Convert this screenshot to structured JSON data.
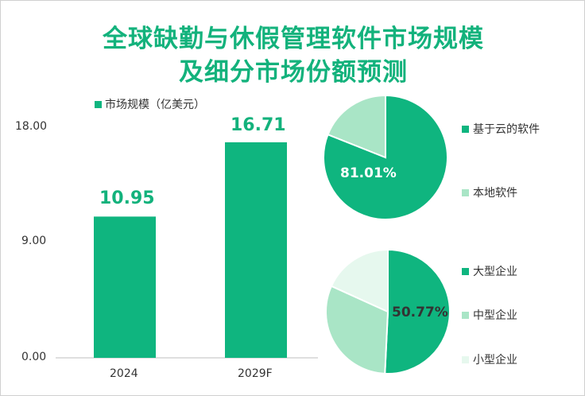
{
  "title": {
    "line1": "全球缺勤与休假管理软件市场规模",
    "line2": "及细分市场份额预测"
  },
  "colors": {
    "title": "#13b27c",
    "primary": "#0fb57f",
    "light": "#a9e5c6",
    "lighter": "#e6f8ee",
    "axis_text": "#333333"
  },
  "chart_data": [
    {
      "type": "bar",
      "legend": "市场规模（亿美元）",
      "categories": [
        "2024",
        "2029F"
      ],
      "series": [
        {
          "name": "市场规模（亿美元）",
          "values": [
            10.95,
            16.71
          ]
        }
      ],
      "data_labels": [
        "10.95",
        "16.71"
      ],
      "y_ticks": [
        "0.00",
        "9.00",
        "18.00"
      ],
      "ylim": [
        0,
        18
      ],
      "grid": false
    },
    {
      "type": "pie",
      "slices": [
        {
          "label": "基于云的软件",
          "value": 81.01,
          "color": "#0fb57f"
        },
        {
          "label": "本地软件",
          "value": 18.99,
          "color": "#a9e5c6"
        }
      ],
      "shown_label": "81.01%",
      "legend_position": "right"
    },
    {
      "type": "pie",
      "slices": [
        {
          "label": "大型企业",
          "value": 50.77,
          "color": "#0fb57f"
        },
        {
          "label": "中型企业",
          "value": 31.0,
          "color": "#a9e5c6"
        },
        {
          "label": "小型企业",
          "value": 18.23,
          "color": "#e6f8ee"
        }
      ],
      "shown_label": "50.77%",
      "legend_position": "right"
    }
  ]
}
